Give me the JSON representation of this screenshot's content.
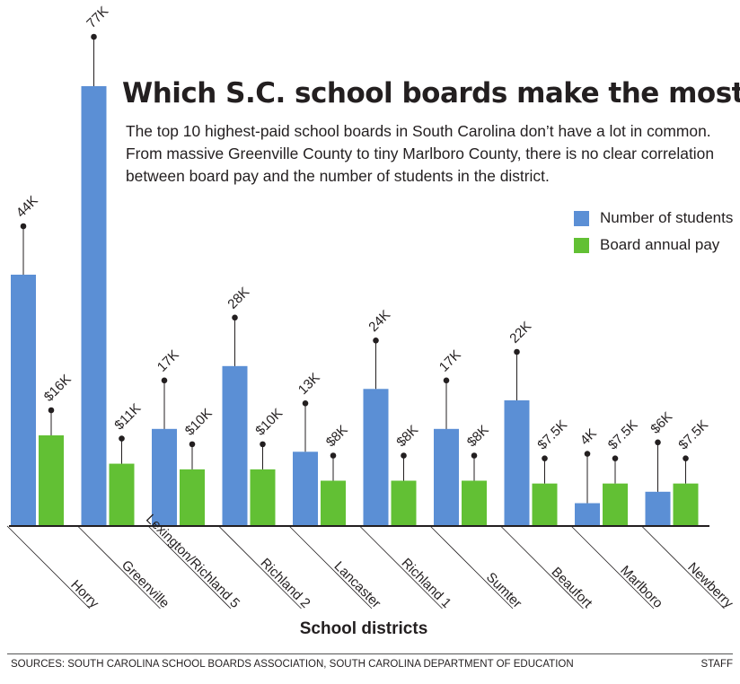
{
  "title": "Which S.C. school boards make the most?",
  "subtitle": "The top 10 highest-paid school boards in South Carolina don’t have a lot in common. From massive Greenville County to tiny Marlboro County, there is no clear correlation between board pay and the number of students in the district.",
  "source": "SOURCES: SOUTH CAROLINA SCHOOL BOARDS ASSOCIATION, SOUTH CAROLINA DEPARTMENT OF EDUCATION",
  "credit": "STAFF",
  "colors": {
    "students": "#5b8fd5",
    "pay": "#62c034"
  },
  "chart_data": {
    "type": "bar",
    "title": "Which S.C. school boards make the most?",
    "xlabel": "School districts",
    "ylabel": "",
    "legend_position": "top-right",
    "categories": [
      "Horry",
      "Greenville",
      "Lexington/Richland 5",
      "Richland 2",
      "Lancaster",
      "Richland 1",
      "Sumter",
      "Beaufort",
      "Marlboro",
      "Newberry"
    ],
    "series": [
      {
        "name": "Number of students",
        "values": [
          44000,
          77000,
          17000,
          28000,
          13000,
          24000,
          17000,
          22000,
          4000,
          6000
        ],
        "labels": [
          "44K",
          "77K",
          "17K",
          "28K",
          "13K",
          "24K",
          "17K",
          "22K",
          "4K",
          "$6K"
        ]
      },
      {
        "name": "Board annual pay",
        "values": [
          16000,
          11000,
          10000,
          10000,
          8000,
          8000,
          8000,
          7500,
          7500,
          7500
        ],
        "labels": [
          "$16K",
          "$11K",
          "$10K",
          "$10K",
          "$8K",
          "$8K",
          "$8K",
          "$7.5K",
          "$7.5K",
          "$7.5K"
        ]
      }
    ]
  }
}
